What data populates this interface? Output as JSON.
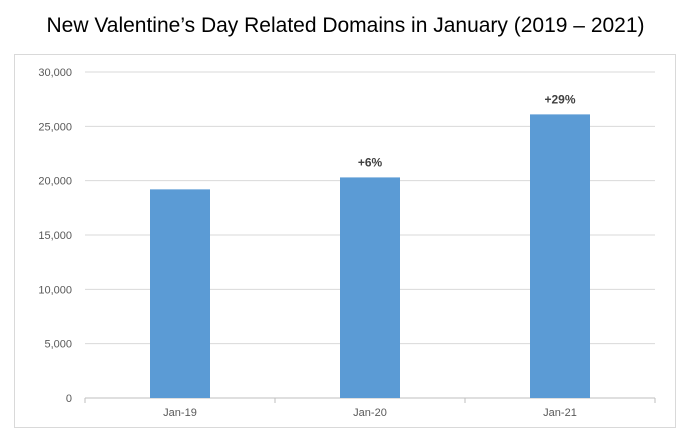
{
  "chart_data": {
    "type": "bar",
    "title": "New Valentine’s Day Related Domains in January (2019 – 2021)",
    "categories": [
      "Jan-19",
      "Jan-20",
      "Jan-21"
    ],
    "values": [
      19200,
      20300,
      26100
    ],
    "data_labels": [
      "",
      "+6%",
      "+29%"
    ],
    "ylim": [
      0,
      30000
    ],
    "yticks": [
      0,
      5000,
      10000,
      15000,
      20000,
      25000,
      30000
    ],
    "ytick_labels": [
      "0",
      "5,000",
      "10,000",
      "15,000",
      "20,000",
      "25,000",
      "30,000"
    ],
    "grid": true,
    "legend": false,
    "bar_color": "#5b9bd5"
  }
}
